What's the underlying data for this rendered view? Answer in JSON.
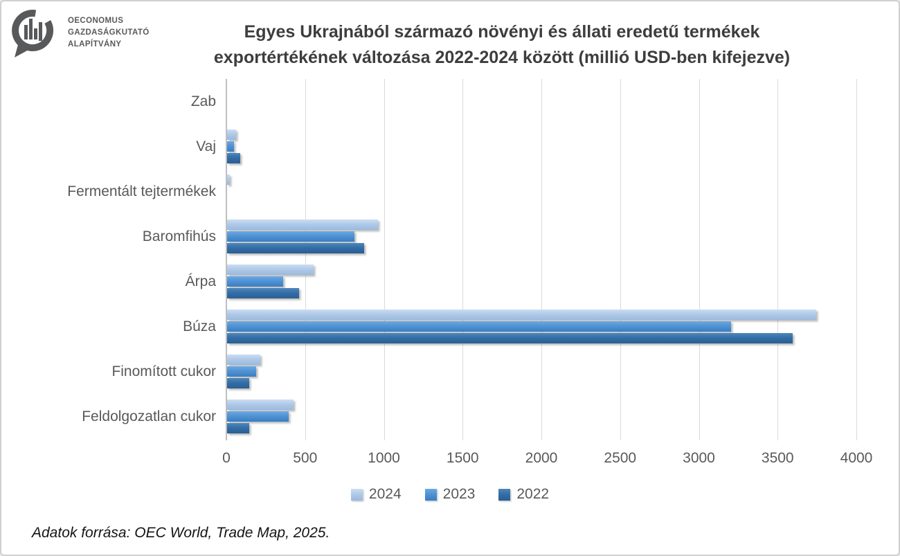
{
  "logo": {
    "org_line1": "OECONOMUS",
    "org_line2": "GAZDASÁGKUTATÓ",
    "org_line3": "ALAPÍTVÁNY",
    "color": "#58595b"
  },
  "title": {
    "line1": "Egyes Ukrajnából származó növényi és állati eredetű termékek",
    "line2": "exportértékének változása 2022-2024 között (millió USD-ben kifejezve)"
  },
  "footer": {
    "source": "Adatok forrása: OEC World, Trade Map, 2025."
  },
  "chart_data": {
    "type": "bar",
    "orientation": "horizontal",
    "title": "Egyes Ukrajnából származó növényi és állati eredetű termékek exportértékének változása 2022-2024 között (millió USD-ben kifejezve)",
    "categories": [
      "Zab",
      "Vaj",
      "Fermentált tejtermékek",
      "Baromfihús",
      "Árpa",
      "Búza",
      "Finomított cukor",
      "Feldolgozatlan cukor"
    ],
    "series": [
      {
        "name": "2024",
        "color": "#aec8e8",
        "color_light": "#cbddf3",
        "color_dark": "#9bb9dd",
        "values": [
          0,
          55,
          18,
          960,
          550,
          3740,
          210,
          420
        ]
      },
      {
        "name": "2023",
        "color": "#4e92d4",
        "color_light": "#6ea8e0",
        "color_dark": "#3a7ec2",
        "values": [
          0,
          45,
          0,
          810,
          355,
          3200,
          185,
          390
        ]
      },
      {
        "name": "2022",
        "color": "#336da6",
        "color_light": "#4d86ba",
        "color_dark": "#2a5e92",
        "values": [
          0,
          85,
          0,
          870,
          455,
          3590,
          140,
          140
        ]
      }
    ],
    "xlim": [
      0,
      4000
    ],
    "x_ticks": [
      0,
      500,
      1000,
      1500,
      2000,
      2500,
      3000,
      3500,
      4000
    ],
    "grid": "vertical-only",
    "legend_position": "bottom",
    "unit": "millió USD"
  }
}
